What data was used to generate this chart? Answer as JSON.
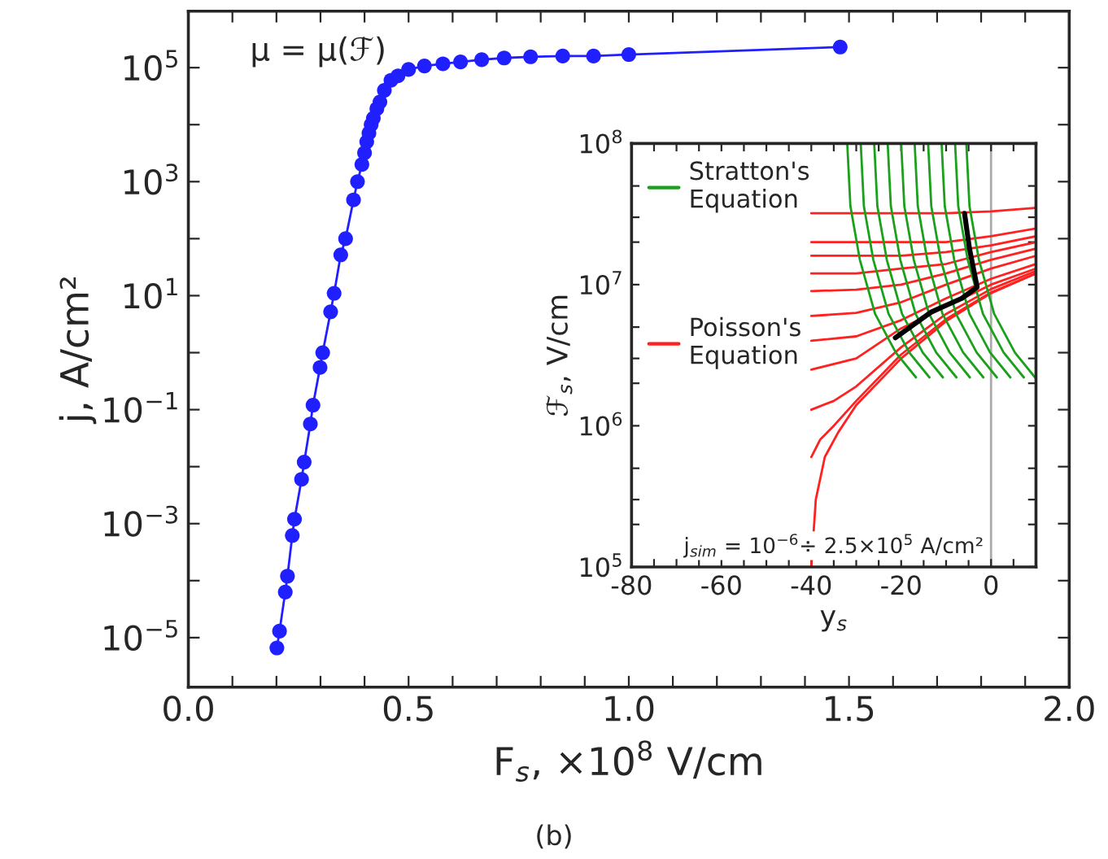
{
  "chart_data": [
    {
      "type": "line",
      "xlabel": "F$_{s}$, ×10$^{8}$ V/cm",
      "ylabel": "j, A/cm²",
      "log": "y",
      "marker": "circle",
      "grid": false,
      "xlim": [
        0,
        2
      ],
      "ylim": [
        1.35e-06,
        980000.0
      ],
      "xticks": [
        {
          "value": 0,
          "label": "0.0"
        },
        {
          "value": 0.1,
          "label": null
        },
        {
          "value": 0.2,
          "label": null
        },
        {
          "value": 0.3,
          "label": null
        },
        {
          "value": 0.4,
          "label": null
        },
        {
          "value": 0.5,
          "label": "0.5"
        },
        {
          "value": 0.6,
          "label": null
        },
        {
          "value": 0.7,
          "label": null
        },
        {
          "value": 0.8,
          "label": null
        },
        {
          "value": 0.9,
          "label": null
        },
        {
          "value": 1,
          "label": "1.0"
        },
        {
          "value": 1.1,
          "label": null
        },
        {
          "value": 1.2,
          "label": null
        },
        {
          "value": 1.3,
          "label": null
        },
        {
          "value": 1.4,
          "label": null
        },
        {
          "value": 1.5,
          "label": "1.5"
        },
        {
          "value": 1.6,
          "label": null
        },
        {
          "value": 1.7,
          "label": null
        },
        {
          "value": 1.8,
          "label": null
        },
        {
          "value": 1.9,
          "label": null
        },
        {
          "value": 2,
          "label": "2.0"
        }
      ],
      "yticks": [
        {
          "value": 1e-05,
          "label": "10$^{−5}$"
        },
        {
          "value": 0.0001,
          "label": null
        },
        {
          "value": 0.001,
          "label": "10$^{−3}$"
        },
        {
          "value": 0.01,
          "label": null
        },
        {
          "value": 0.1,
          "label": "10$^{−1}$"
        },
        {
          "value": 1,
          "label": null
        },
        {
          "value": 10,
          "label": "10$^{1}$"
        },
        {
          "value": 100,
          "label": null
        },
        {
          "value": 1000,
          "label": "10$^{3}$"
        },
        {
          "value": 10000.0,
          "label": null
        },
        {
          "value": 100000.0,
          "label": "10$^{5}$"
        }
      ],
      "annotations": [
        "μ = μ(ℱ)",
        "(b)"
      ],
      "series": [
        {
          "color": "#1f1fff",
          "x": [
            0.201,
            0.207,
            0.22,
            0.225,
            0.236,
            0.241,
            0.257,
            0.263,
            0.277,
            0.283,
            0.299,
            0.305,
            0.323,
            0.331,
            0.346,
            0.357,
            0.375,
            0.384,
            0.394,
            0.4,
            0.405,
            0.41,
            0.415,
            0.42,
            0.428,
            0.435,
            0.445,
            0.46,
            0.476,
            0.5,
            0.536,
            0.578,
            0.618,
            0.666,
            0.717,
            0.777,
            0.85,
            0.92,
            1.0,
            1.48
          ],
          "values": [
            6.6e-06,
            1.3e-05,
            6.3e-05,
            0.00012,
            0.00062,
            0.0012,
            0.006,
            0.012,
            0.056,
            0.12,
            0.55,
            1.0,
            5.2,
            11,
            52,
            100,
            480,
            1000,
            2000,
            3200,
            5000,
            7100,
            10000.0,
            13000.0,
            19000.0,
            25000.0,
            40000.0,
            60000.0,
            72000.0,
            93000.0,
            107000.0,
            117000.0,
            126000.0,
            138000.0,
            148000.0,
            155000.0,
            160000.0,
            160000.0,
            170000.0,
            230000.0
          ]
        }
      ]
    },
    {
      "type": "line",
      "xlabel": "y$_{s}$",
      "ylabel": "ℱ$_{s}$, V/cm",
      "log": "y",
      "marker": "none",
      "grid": false,
      "legend": "upper left",
      "xlim": [
        -80,
        10
      ],
      "ylim": [
        100000.0,
        100000000.0
      ],
      "xticks": [
        -80,
        {
          "value": -75,
          "label": null
        },
        {
          "value": -70,
          "label": null
        },
        {
          "value": -65,
          "label": null
        },
        -60,
        {
          "value": -55,
          "label": null
        },
        {
          "value": -50,
          "label": null
        },
        {
          "value": -45,
          "label": null
        },
        -40,
        {
          "value": -35,
          "label": null
        },
        {
          "value": -30,
          "label": null
        },
        {
          "value": -25,
          "label": null
        },
        -20,
        {
          "value": -15,
          "label": null
        },
        {
          "value": -10,
          "label": null
        },
        {
          "value": -5,
          "label": null
        },
        0,
        {
          "value": 5,
          "label": null
        }
      ],
      "yticks": [
        {
          "value": 100000.0,
          "label": "10$^{5}$"
        },
        {
          "value": 200000.0,
          "label": null
        },
        {
          "value": 300000.0,
          "label": null
        },
        {
          "value": 500000.0,
          "label": null
        },
        {
          "value": 1000000.0,
          "label": "10$^{6}$"
        },
        {
          "value": 2000000.0,
          "label": null
        },
        {
          "value": 3000000.0,
          "label": null
        },
        {
          "value": 5000000.0,
          "label": null
        },
        {
          "value": 10000000.0,
          "label": "10$^{7}$"
        },
        {
          "value": 20000000.0,
          "label": null
        },
        {
          "value": 30000000.0,
          "label": null
        },
        {
          "value": 50000000.0,
          "label": null
        },
        {
          "value": 100000000.0,
          "label": "10$^{8}$"
        }
      ],
      "ref_lines": [
        {
          "axis": "x",
          "value": 0,
          "color": "#aaaaaa"
        }
      ],
      "annotations": [
        "j$_{sim}$ = 10$^{−6}$÷ 2.5×10$^{5}$ A/cm²"
      ],
      "series": [
        {
          "name": "Poisson's\nEquation",
          "color": "#ff2020",
          "x": [
            -40,
            -30,
            -20,
            -10,
            0,
            10
          ],
          "values": [
            32000000.0,
            32000000.0,
            32000000.0,
            32000000.0,
            33000000.0,
            35000000.0
          ]
        },
        {
          "color": "#ff2020",
          "x": [
            -40,
            -30,
            -20,
            -10,
            0,
            10
          ],
          "values": [
            20000000.0,
            20000000.0,
            20000000.0,
            20000000.0,
            22000000.0,
            25000000.0
          ]
        },
        {
          "color": "#ff2020",
          "x": [
            -40,
            -30,
            -20,
            -10,
            0,
            10
          ],
          "values": [
            16000000.0,
            16000000.0,
            16000000.0,
            17000000.0,
            19000000.0,
            22000000.0
          ]
        },
        {
          "color": "#ff2020",
          "x": [
            -40,
            -30,
            -20,
            -10,
            0,
            10
          ],
          "values": [
            12000000.0,
            12000000.0,
            13000000.0,
            14000000.0,
            17000000.0,
            20000000.0
          ]
        },
        {
          "color": "#ff2020",
          "x": [
            -40,
            -30,
            -20,
            -10,
            0,
            10
          ],
          "values": [
            9000000.0,
            9200000.0,
            10000000.0,
            12000000.0,
            15000000.0,
            18000000.0
          ]
        },
        {
          "color": "#ff2020",
          "x": [
            -40,
            -30,
            -20,
            -10,
            0,
            10
          ],
          "values": [
            6000000.0,
            6300000.0,
            7500000.0,
            10000000.0,
            13000000.0,
            16000000.0
          ]
        },
        {
          "color": "#ff2020",
          "x": [
            -40,
            -30,
            -20,
            -10,
            0,
            10
          ],
          "values": [
            4000000.0,
            4300000.0,
            5600000.0,
            8000000.0,
            11000000.0,
            14000000.0
          ]
        },
        {
          "color": "#ff2020",
          "x": [
            -40,
            -30,
            -20,
            -10,
            0,
            10
          ],
          "values": [
            2500000.0,
            3000000.0,
            4900000.0,
            7000000.0,
            10000000.0,
            13000000.0
          ]
        },
        {
          "color": "#ff2020",
          "x": [
            -40,
            -35,
            -30,
            -20,
            -10,
            0,
            10
          ],
          "values": [
            1300000.0,
            1500000.0,
            1900000.0,
            3600000.0,
            6200000.0,
            9300000.0,
            12500000.0
          ]
        },
        {
          "color": "#ff2020",
          "x": [
            -40,
            -38,
            -35,
            -30,
            -20,
            -10,
            0,
            10
          ],
          "values": [
            600000.0,
            800000.0,
            1000000.0,
            1500000.0,
            3200000.0,
            5700000.0,
            8800000.0,
            12000000.0
          ]
        },
        {
          "color": "#ff2020",
          "x": [
            -40,
            -39,
            -37,
            -34,
            -30,
            -20,
            -10,
            0,
            10
          ],
          "values": [
            100000.0,
            300000.0,
            600000.0,
            900000.0,
            1400000.0,
            3000000.0,
            5500000.0,
            8700000.0,
            12000000.0
          ]
        },
        {
          "name": "Stratton's\nEquation",
          "color": "#1aa01a",
          "x": [
            -32,
            -31.3,
            -29.2,
            -25.8,
            -21.2,
            -16.7
          ],
          "values": [
            100000000.0,
            36000000.0,
            15000000.0,
            6200000.0,
            3300000.0,
            2200000.0
          ]
        },
        {
          "color": "#1aa01a",
          "x": [
            -29,
            -28.3,
            -26.2,
            -22.8,
            -18.2,
            -13.7
          ],
          "values": [
            100000000.0,
            36000000.0,
            15000000.0,
            6200000.0,
            3300000.0,
            2200000.0
          ]
        },
        {
          "color": "#1aa01a",
          "x": [
            -26,
            -25.3,
            -23.2,
            -19.8,
            -15.2,
            -10.7
          ],
          "values": [
            100000000.0,
            36000000.0,
            15000000.0,
            6200000.0,
            3300000.0,
            2200000.0
          ]
        },
        {
          "color": "#1aa01a",
          "x": [
            -23,
            -22.3,
            -20.2,
            -16.8,
            -12.2,
            -7.7
          ],
          "values": [
            100000000.0,
            36000000.0,
            15000000.0,
            6200000.0,
            3300000.0,
            2200000.0
          ]
        },
        {
          "color": "#1aa01a",
          "x": [
            -20,
            -19.3,
            -17.2,
            -13.8,
            -9.2,
            -4.7
          ],
          "values": [
            100000000.0,
            36000000.0,
            15000000.0,
            6200000.0,
            3300000.0,
            2200000.0
          ]
        },
        {
          "color": "#1aa01a",
          "x": [
            -17,
            -16.3,
            -14.2,
            -10.8,
            -6.2,
            -1.7
          ],
          "values": [
            100000000.0,
            36000000.0,
            15000000.0,
            6200000.0,
            3300000.0,
            2200000.0
          ]
        },
        {
          "color": "#1aa01a",
          "x": [
            -14,
            -13.3,
            -11.2,
            -7.8,
            -3.2,
            1.3
          ],
          "values": [
            100000000.0,
            36000000.0,
            15000000.0,
            6200000.0,
            3300000.0,
            2200000.0
          ]
        },
        {
          "color": "#1aa01a",
          "x": [
            -11,
            -10.3,
            -8.2,
            -4.8,
            -0.2,
            4.3
          ],
          "values": [
            100000000.0,
            36000000.0,
            15000000.0,
            6200000.0,
            3300000.0,
            2200000.0
          ]
        },
        {
          "color": "#1aa01a",
          "x": [
            -8,
            -7.3,
            -5.2,
            -1.8,
            2.8,
            7.3
          ],
          "values": [
            100000000.0,
            36000000.0,
            15000000.0,
            6200000.0,
            3300000.0,
            2200000.0
          ]
        },
        {
          "color": "#1aa01a",
          "x": [
            -5.5,
            -4.8,
            -2.7,
            0.7,
            5.3,
            9.8
          ],
          "values": [
            100000000.0,
            36000000.0,
            15000000.0,
            6200000.0,
            3300000.0,
            2200000.0
          ]
        },
        {
          "color": "#000000",
          "x": [
            -21.3,
            -13.3,
            -6.5,
            -3.1,
            -4.8,
            -5.9
          ],
          "values": [
            4200000.0,
            6400000.0,
            8000000.0,
            9600000.0,
            18000000.0,
            32000000.0
          ]
        }
      ]
    }
  ]
}
